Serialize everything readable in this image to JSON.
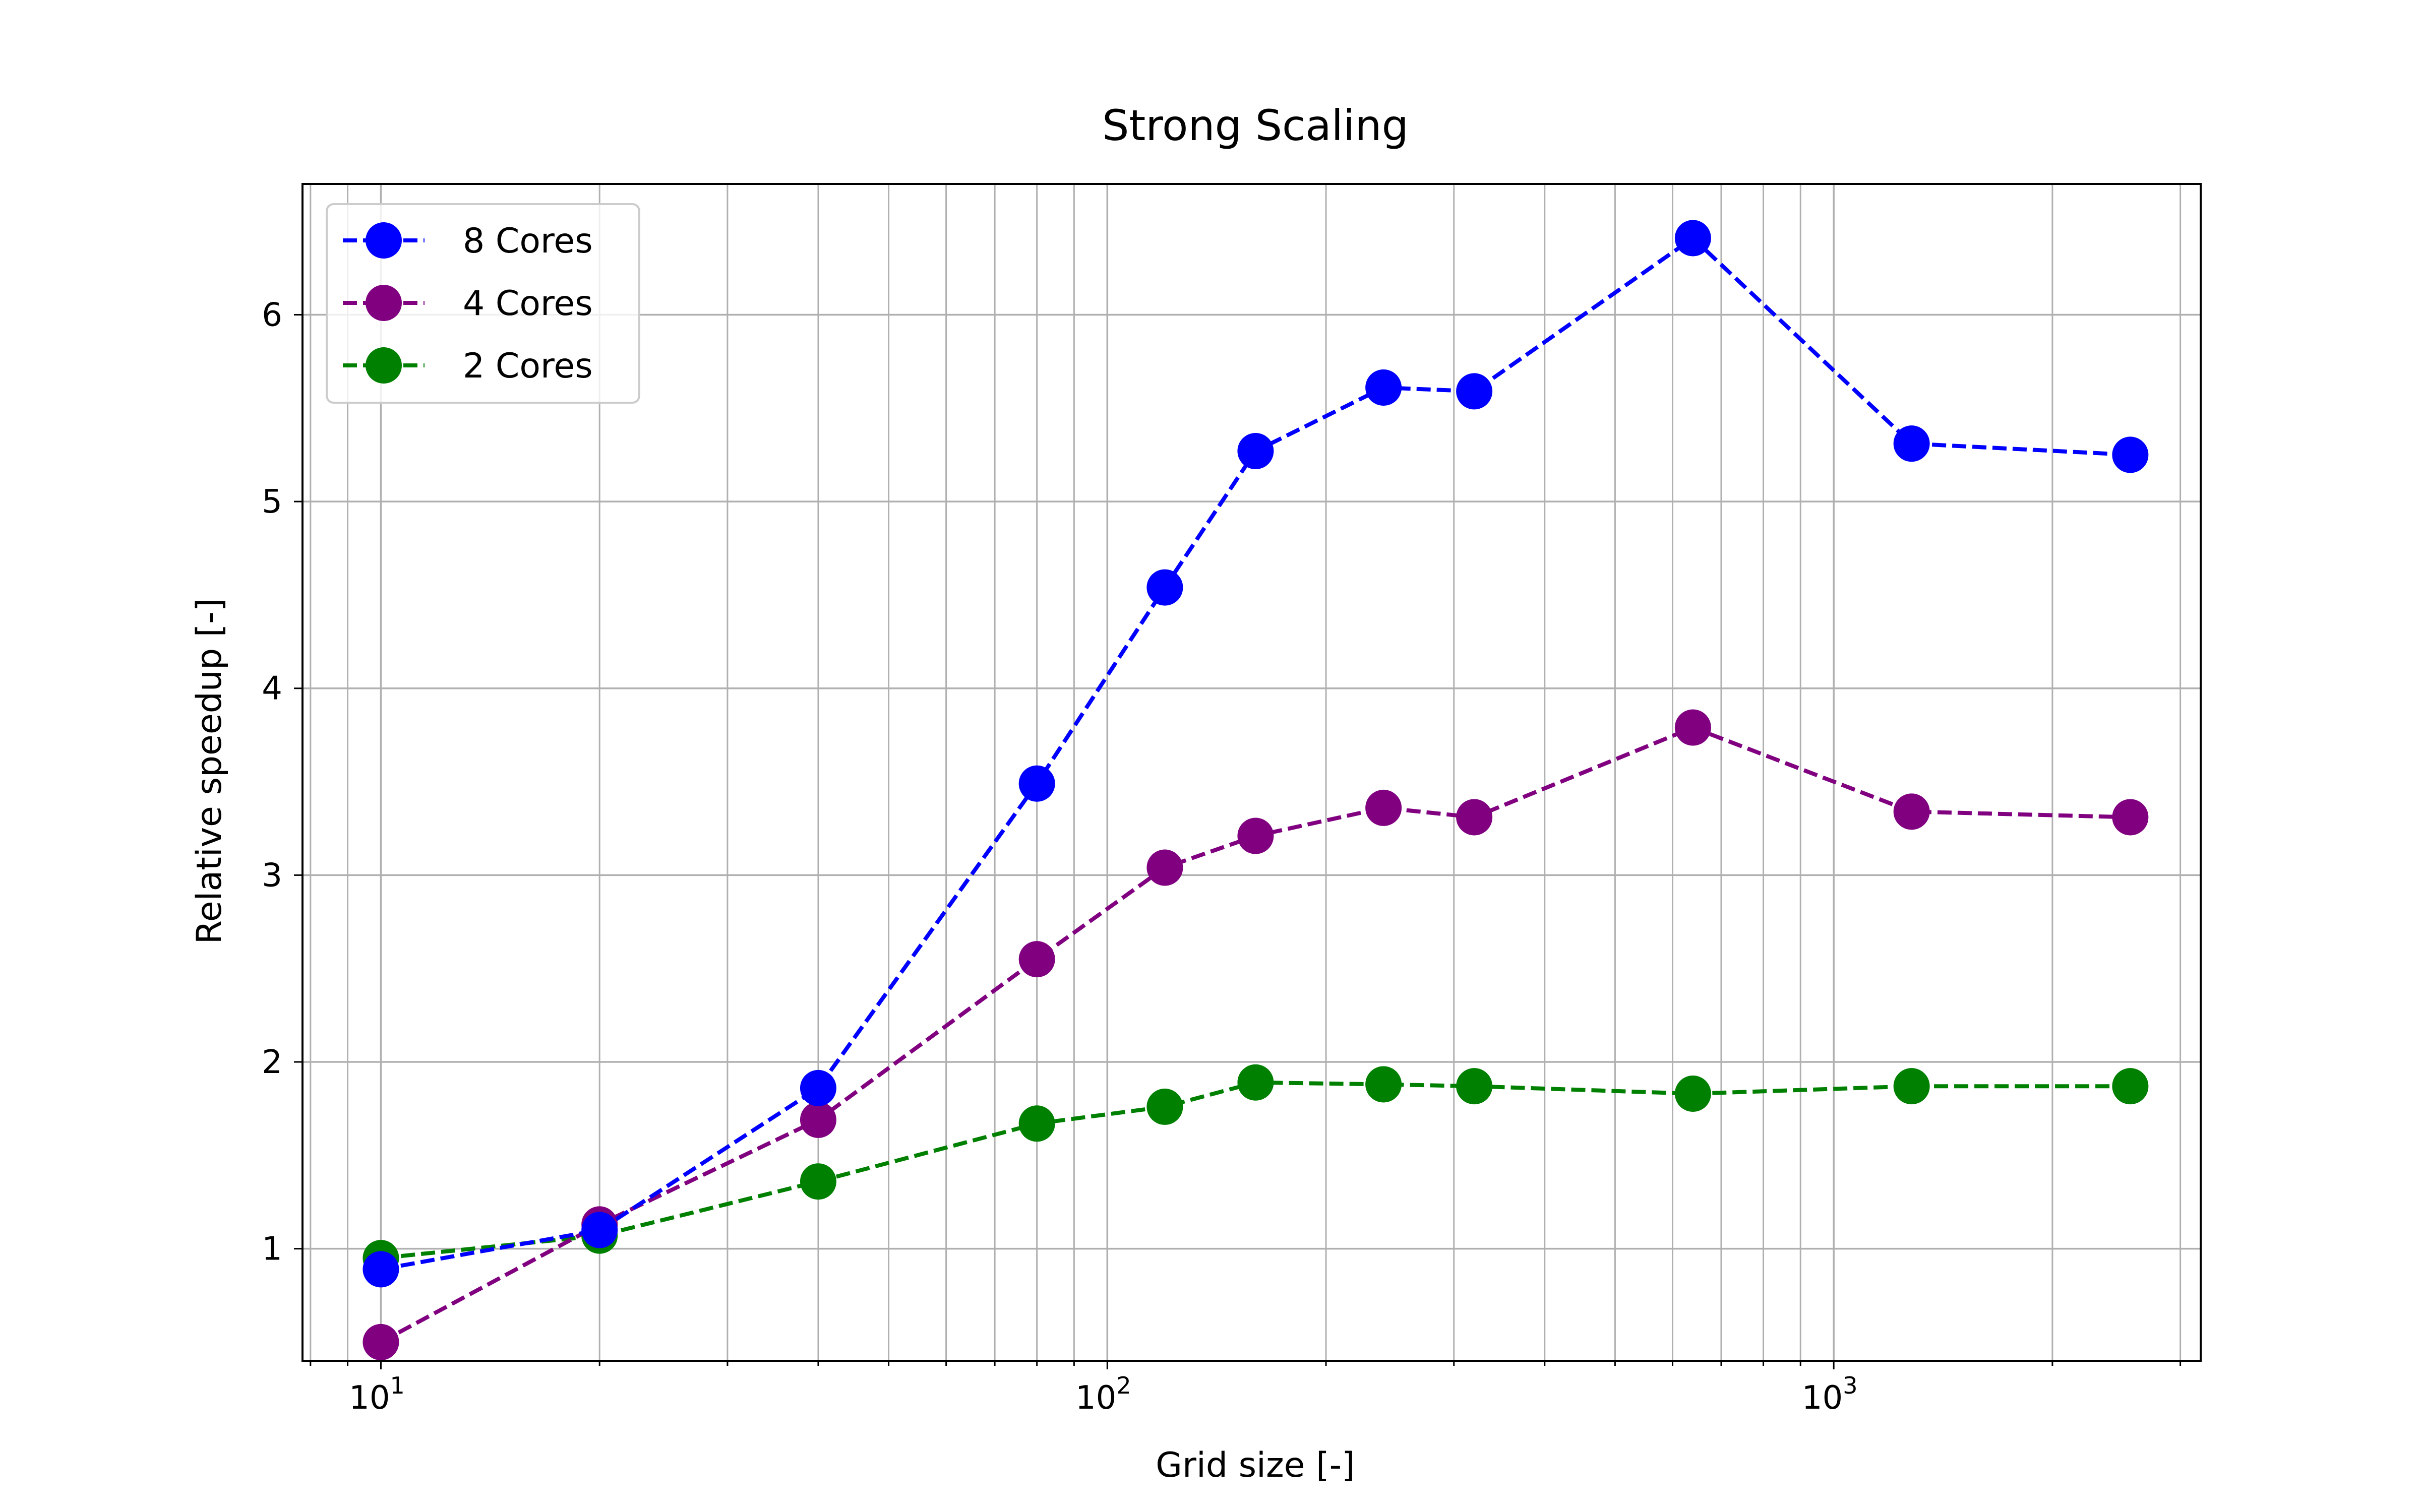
{
  "chart_data": {
    "type": "line",
    "title": "Strong Scaling",
    "xlabel": "Grid size [-]",
    "ylabel": "Relative speedup [-]",
    "xscale": "log",
    "xlim": [
      7.8,
      3200
    ],
    "ylim": [
      0.4,
      6.7
    ],
    "grid": true,
    "legend_position": "upper-left",
    "x": [
      10,
      20,
      40,
      80,
      120,
      160,
      240,
      320,
      640,
      1280,
      2560
    ],
    "series": [
      {
        "name": "8 Cores",
        "color": "#0000ff",
        "marker": "circle",
        "linestyle": "dashed",
        "values": [
          0.89,
          1.1,
          1.86,
          3.49,
          4.54,
          5.27,
          5.61,
          5.59,
          6.41,
          5.31,
          5.25
        ]
      },
      {
        "name": "4 Cores",
        "color": "#800080",
        "marker": "circle",
        "linestyle": "dashed",
        "values": [
          0.5,
          1.13,
          1.69,
          2.55,
          3.04,
          3.21,
          3.36,
          3.31,
          3.79,
          3.34,
          3.31
        ]
      },
      {
        "name": "2 Cores",
        "color": "#008000",
        "marker": "circle",
        "linestyle": "dashed",
        "values": [
          0.95,
          1.07,
          1.36,
          1.67,
          1.76,
          1.89,
          1.88,
          1.87,
          1.83,
          1.87,
          1.87
        ]
      }
    ],
    "yticks": [
      1,
      2,
      3,
      4,
      5,
      6
    ],
    "xticks": [
      {
        "value": 10,
        "base": "10",
        "exp": "1"
      },
      {
        "value": 100,
        "base": "10",
        "exp": "2"
      },
      {
        "value": 1000,
        "base": "10",
        "exp": "3"
      }
    ]
  }
}
